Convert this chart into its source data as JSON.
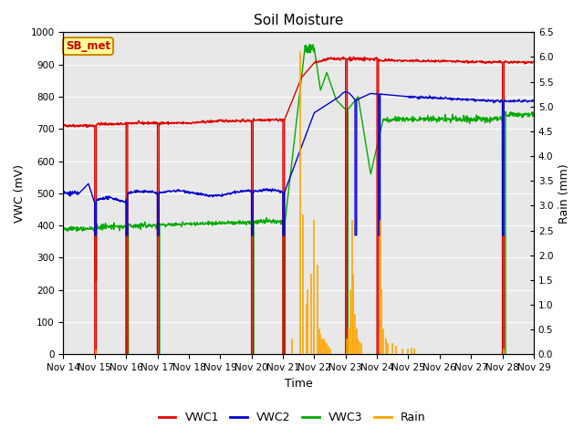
{
  "title": "Soil Moisture",
  "xlabel": "Time",
  "ylabel_left": "VWC (mV)",
  "ylabel_right": "Rain (mm)",
  "xlim_days": [
    0,
    15
  ],
  "ylim_left": [
    0,
    1000
  ],
  "ylim_right": [
    0,
    6.5
  ],
  "fig_bg_color": "#ffffff",
  "plot_bg_color": "#e8e8e8",
  "grid_color": "#ffffff",
  "annotation_label": "SB_met",
  "annotation_box_color": "#ffff99",
  "annotation_text_color": "#cc0000",
  "annotation_edge_color": "#cc8800",
  "colors": {
    "VWC1": "#dd0000",
    "VWC2": "#0000cc",
    "VWC3": "#00aa00",
    "Rain": "#ffa500"
  },
  "xtick_labels": [
    "Nov 14",
    "Nov 15",
    "Nov 16",
    "Nov 17",
    "Nov 18",
    "Nov 19",
    "Nov 20",
    "Nov 21",
    "Nov 22",
    "Nov 23",
    "Nov 24",
    "Nov 25",
    "Nov 26",
    "Nov 27",
    "Nov 28",
    "Nov 29"
  ],
  "yticks_left": [
    0,
    100,
    200,
    300,
    400,
    500,
    600,
    700,
    800,
    900,
    1000
  ],
  "yticks_right": [
    0.0,
    0.5,
    1.0,
    1.5,
    2.0,
    2.5,
    3.0,
    3.5,
    4.0,
    4.5,
    5.0,
    5.5,
    6.0,
    6.5
  ],
  "legend_labels": [
    "VWC1",
    "VWC2",
    "VWC3",
    "Rain"
  ],
  "title_fontsize": 11,
  "label_fontsize": 9,
  "tick_fontsize": 7.5
}
